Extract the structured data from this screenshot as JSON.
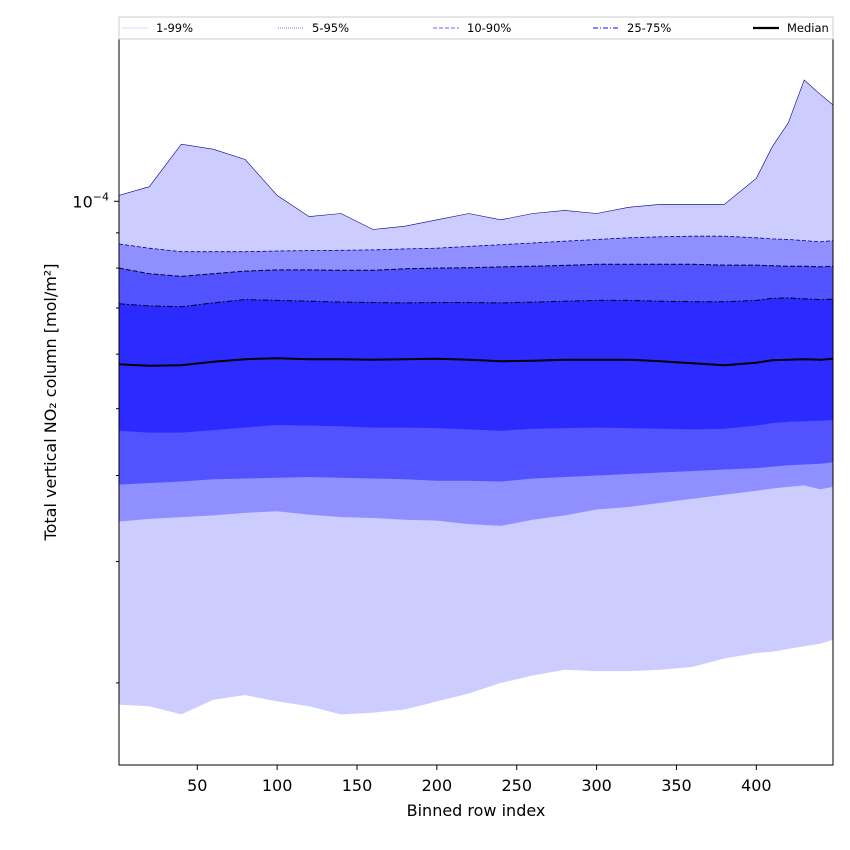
{
  "chart_data": {
    "type": "area",
    "xlabel": "Binned row index",
    "ylabel": "Total vertical NO₂ column [mol/m²]",
    "y_scale": "log",
    "xlim": [
      1,
      448
    ],
    "ylim": [
      1.52e-05,
      0.000172
    ],
    "x_ticks": [
      50,
      100,
      150,
      200,
      250,
      300,
      350,
      400
    ],
    "y_major_tick": {
      "value": 0.0001,
      "base": "10",
      "exponent": "−4"
    },
    "y_minor_ticks": [
      2e-05,
      3e-05,
      4e-05,
      5e-05,
      6e-05,
      7e-05,
      8e-05,
      9e-05
    ],
    "legend_position": "top",
    "legend": [
      {
        "label": "1-99%",
        "style": "solid",
        "color": "#e0e0ff"
      },
      {
        "label": "5-95%",
        "style": "dotted",
        "color": "#9b9bff"
      },
      {
        "label": "10-90%",
        "style": "dashed",
        "color": "#8080ff"
      },
      {
        "label": "25-75%",
        "style": "dashdot",
        "color": "#3d3dff"
      },
      {
        "label": "Median",
        "style": "solid-thick",
        "color": "#000000"
      }
    ],
    "band_colors": {
      "p1_99": "#ccccff",
      "p5_95": "#8f8fff",
      "p10_90": "#5252ff",
      "p25_75": "#2b2bff"
    },
    "x": [
      1,
      20,
      40,
      60,
      80,
      100,
      120,
      140,
      160,
      180,
      200,
      220,
      240,
      260,
      280,
      300,
      320,
      340,
      360,
      380,
      400,
      410,
      420,
      430,
      440,
      448
    ],
    "series": [
      {
        "name": "1%",
        "values": [
          1.86e-05,
          1.85e-05,
          1.8e-05,
          1.89e-05,
          1.92e-05,
          1.88e-05,
          1.85e-05,
          1.8e-05,
          1.81e-05,
          1.83e-05,
          1.88e-05,
          1.93e-05,
          2e-05,
          2.05e-05,
          2.09e-05,
          2.08e-05,
          2.08e-05,
          2.09e-05,
          2.11e-05,
          2.17e-05,
          2.21e-05,
          2.22e-05,
          2.24e-05,
          2.26e-05,
          2.28e-05,
          2.31e-05
        ]
      },
      {
        "name": "5%",
        "values": [
          3.43e-05,
          3.46e-05,
          3.48e-05,
          3.5e-05,
          3.53e-05,
          3.55e-05,
          3.51e-05,
          3.48e-05,
          3.47e-05,
          3.45e-05,
          3.44e-05,
          3.4e-05,
          3.38e-05,
          3.45e-05,
          3.5e-05,
          3.57e-05,
          3.6e-05,
          3.65e-05,
          3.7e-05,
          3.75e-05,
          3.8e-05,
          3.83e-05,
          3.85e-05,
          3.87e-05,
          3.82e-05,
          3.85e-05
        ]
      },
      {
        "name": "10%",
        "values": [
          3.88e-05,
          3.9e-05,
          3.92e-05,
          3.95e-05,
          3.96e-05,
          3.97e-05,
          3.98e-05,
          3.97e-05,
          3.96e-05,
          3.95e-05,
          3.93e-05,
          3.93e-05,
          3.92e-05,
          3.96e-05,
          3.98e-05,
          4e-05,
          4.02e-05,
          4.04e-05,
          4.06e-05,
          4.08e-05,
          4.1e-05,
          4.12e-05,
          4.14e-05,
          4.15e-05,
          4.16e-05,
          4.18e-05
        ]
      },
      {
        "name": "25%",
        "values": [
          4.65e-05,
          4.62e-05,
          4.62e-05,
          4.66e-05,
          4.7e-05,
          4.74e-05,
          4.73e-05,
          4.72e-05,
          4.7e-05,
          4.7e-05,
          4.69e-05,
          4.67e-05,
          4.65e-05,
          4.68e-05,
          4.69e-05,
          4.7e-05,
          4.69e-05,
          4.68e-05,
          4.67e-05,
          4.68e-05,
          4.73e-05,
          4.77e-05,
          4.79e-05,
          4.8e-05,
          4.81e-05,
          4.82e-05
        ]
      },
      {
        "name": "Median",
        "values": [
          5.8e-05,
          5.77e-05,
          5.78e-05,
          5.85e-05,
          5.9e-05,
          5.92e-05,
          5.9e-05,
          5.9e-05,
          5.89e-05,
          5.9e-05,
          5.91e-05,
          5.89e-05,
          5.86e-05,
          5.87e-05,
          5.89e-05,
          5.89e-05,
          5.89e-05,
          5.86e-05,
          5.82e-05,
          5.78e-05,
          5.83e-05,
          5.88e-05,
          5.89e-05,
          5.9e-05,
          5.89e-05,
          5.91e-05
        ]
      },
      {
        "name": "75%",
        "values": [
          7.1e-05,
          7.05e-05,
          7.03e-05,
          7.12e-05,
          7.2e-05,
          7.18e-05,
          7.16e-05,
          7.14e-05,
          7.13e-05,
          7.12e-05,
          7.13e-05,
          7.13e-05,
          7.12e-05,
          7.14e-05,
          7.16e-05,
          7.18e-05,
          7.18e-05,
          7.16e-05,
          7.15e-05,
          7.15e-05,
          7.18e-05,
          7.23e-05,
          7.24e-05,
          7.22e-05,
          7.2e-05,
          7.21e-05
        ]
      },
      {
        "name": "90%",
        "values": [
          8e-05,
          7.85e-05,
          7.78e-05,
          7.85e-05,
          7.92e-05,
          7.95e-05,
          7.95e-05,
          7.94e-05,
          7.94e-05,
          7.98e-05,
          8e-05,
          8.01e-05,
          8.03e-05,
          8.05e-05,
          8.07e-05,
          8.1e-05,
          8.1e-05,
          8.1e-05,
          8.1e-05,
          8.08e-05,
          8.08e-05,
          8.06e-05,
          8.05e-05,
          8.05e-05,
          8.03e-05,
          8.05e-05
        ]
      },
      {
        "name": "95%",
        "values": [
          8.67e-05,
          8.55e-05,
          8.45e-05,
          8.45e-05,
          8.45e-05,
          8.47e-05,
          8.48e-05,
          8.49e-05,
          8.5e-05,
          8.53e-05,
          8.55e-05,
          8.6e-05,
          8.65e-05,
          8.7e-05,
          8.75e-05,
          8.8e-05,
          8.85e-05,
          8.88e-05,
          8.9e-05,
          8.9e-05,
          8.85e-05,
          8.82e-05,
          8.8e-05,
          8.77e-05,
          8.73e-05,
          8.77e-05
        ]
      },
      {
        "name": "99%",
        "values": [
          0.000102,
          0.000105,
          0.000121,
          0.000119,
          0.000115,
          0.000102,
          9.5e-05,
          9.6e-05,
          9.1e-05,
          9.2e-05,
          9.4e-05,
          9.6e-05,
          9.4e-05,
          9.6e-05,
          9.7e-05,
          9.6e-05,
          9.8e-05,
          9.9e-05,
          9.9e-05,
          9.9e-05,
          0.000108,
          0.00012,
          0.00013,
          0.00015,
          0.000143,
          0.000138
        ]
      }
    ]
  }
}
